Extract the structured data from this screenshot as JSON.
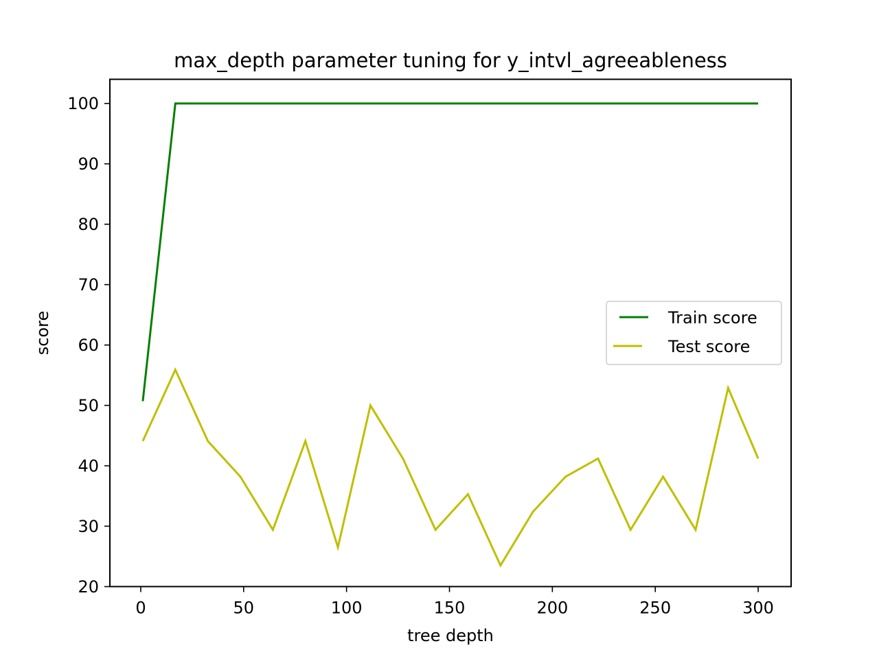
{
  "chart_data": {
    "type": "line",
    "title": "max_depth parameter tuning for y_intvl_agreeableness",
    "xlabel": "tree depth",
    "ylabel": "score",
    "xlim": [
      -15,
      316
    ],
    "ylim": [
      20,
      104
    ],
    "xticks": [
      0,
      50,
      100,
      150,
      200,
      250,
      300
    ],
    "yticks": [
      20,
      30,
      40,
      50,
      60,
      70,
      80,
      90,
      100
    ],
    "grid": false,
    "legend_position": "center-right",
    "x": [
      1,
      16.8,
      32.6,
      48.4,
      64.2,
      80,
      95.8,
      111.6,
      127.4,
      143.2,
      159,
      174.8,
      190.6,
      206.4,
      222.2,
      238,
      253.8,
      269.6,
      285.4,
      300
    ],
    "series": [
      {
        "name": "Train score",
        "color": "#008000",
        "values": [
          50.7,
          100,
          100,
          100,
          100,
          100,
          100,
          100,
          100,
          100,
          100,
          100,
          100,
          100,
          100,
          100,
          100,
          100,
          100,
          100
        ]
      },
      {
        "name": "Test score",
        "color": "#bfbf00",
        "values": [
          44.1,
          55.9,
          44.1,
          38.2,
          29.4,
          44.1,
          26.5,
          50,
          41.2,
          29.4,
          35.3,
          23.5,
          32.4,
          38.2,
          41.2,
          29.4,
          38.2,
          29.4,
          52.9,
          41.2
        ]
      }
    ]
  }
}
